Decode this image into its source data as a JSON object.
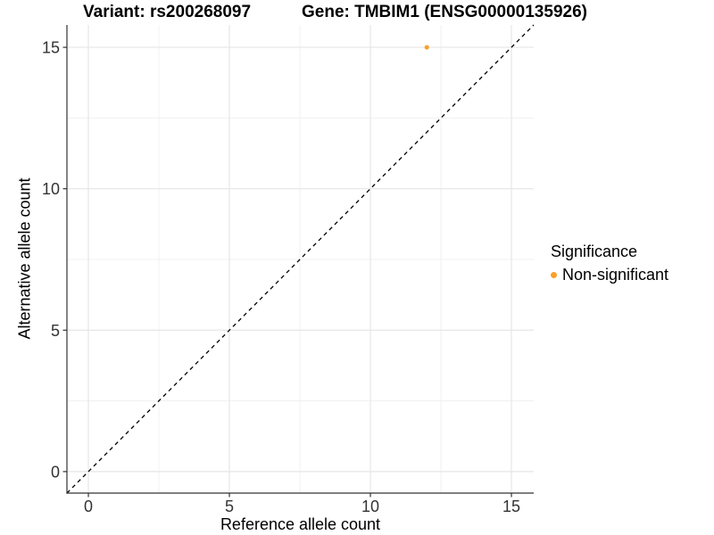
{
  "titles": {
    "variant": "Variant: rs200268097",
    "gene": "Gene: TMBIM1 (ENSG00000135926)"
  },
  "chart_data": {
    "type": "scatter",
    "title_left": "Variant: rs200268097",
    "title_right": "Gene: TMBIM1 (ENSG00000135926)",
    "xlabel": "Reference allele count",
    "ylabel": "Alternative allele count",
    "xlim": [
      -0.76,
      15.79
    ],
    "ylim": [
      -0.76,
      15.79
    ],
    "x_ticks": [
      0,
      5,
      10,
      15
    ],
    "y_ticks": [
      0,
      5,
      10,
      15
    ],
    "x_minor_ticks": [
      2.5,
      7.5,
      12.5
    ],
    "y_minor_ticks": [
      2.5,
      7.5,
      12.5
    ],
    "grid": true,
    "points": [
      {
        "x": 12,
        "y": 15,
        "series": "Non-significant"
      }
    ],
    "reference_line": {
      "type": "identity",
      "slope": 1,
      "intercept": 0,
      "style": "dashed"
    },
    "legend": {
      "title": "Significance",
      "position": "right",
      "entries": [
        {
          "label": "Non-significant",
          "color": "#F9A029"
        }
      ]
    }
  },
  "colors": {
    "point": "#F9A029",
    "grid_major": "#E6E6E6",
    "grid_minor": "#F0F0F0",
    "axis": "#333333",
    "dashed_line": "#000000",
    "tick_text": "#333333",
    "text": "#000000",
    "background": "#FFFFFF"
  }
}
